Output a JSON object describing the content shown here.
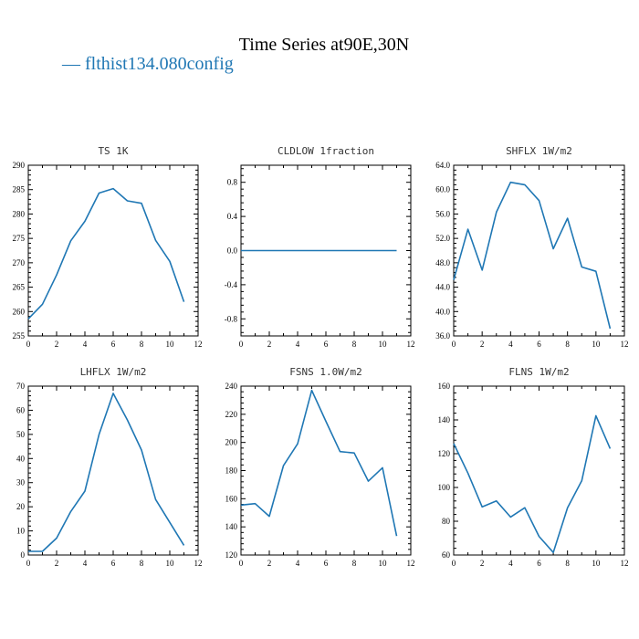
{
  "page": {
    "title": "Time Series at90E,30N",
    "legend_label": "— flthist134.080config",
    "line_color": "#1f77b4"
  },
  "chart_data": [
    {
      "type": "line",
      "title": "TS  1K",
      "x": [
        0,
        1,
        2,
        3,
        4,
        5,
        6,
        7,
        8,
        9,
        10,
        11
      ],
      "values": [
        258.5,
        261.5,
        267.5,
        274.5,
        278.5,
        284.3,
        285.2,
        282.7,
        282.2,
        274.6,
        270.3,
        262.0
      ],
      "xlim": [
        0,
        12
      ],
      "ylim": [
        255,
        290
      ],
      "xticks": [
        0,
        2,
        4,
        6,
        8,
        10,
        12
      ],
      "yticks": [
        255,
        260,
        265,
        270,
        275,
        280,
        285,
        290
      ],
      "ytick_labels": [
        "255",
        "260",
        "265",
        "270",
        "275",
        "280",
        "285",
        "290"
      ]
    },
    {
      "type": "line",
      "title": "CLDLOW  1fraction",
      "x": [
        0,
        1,
        2,
        3,
        4,
        5,
        6,
        7,
        8,
        9,
        10,
        11
      ],
      "values": [
        0,
        0,
        0,
        0,
        0,
        0,
        0,
        0,
        0,
        0,
        0,
        0
      ],
      "xlim": [
        0,
        12
      ],
      "ylim": [
        -1.0,
        1.0
      ],
      "xticks": [
        0,
        2,
        4,
        6,
        8,
        10,
        12
      ],
      "yticks": [
        -0.8,
        -0.4,
        0.0,
        0.4,
        0.8
      ],
      "ytick_labels": [
        "-0.8",
        "-0.4",
        "0.0",
        "0.4",
        "0.8"
      ]
    },
    {
      "type": "line",
      "title": "SHFLX  1W/m2",
      "x": [
        0,
        1,
        2,
        3,
        4,
        5,
        6,
        7,
        8,
        9,
        10,
        11
      ],
      "values": [
        45.2,
        53.5,
        46.8,
        56.3,
        61.2,
        60.8,
        58.2,
        50.3,
        55.3,
        47.3,
        46.6,
        37.2
      ],
      "xlim": [
        0,
        12
      ],
      "ylim": [
        36.0,
        64.0
      ],
      "xticks": [
        0,
        2,
        4,
        6,
        8,
        10,
        12
      ],
      "yticks": [
        36,
        40,
        44,
        48,
        52,
        56,
        60,
        64
      ],
      "ytick_labels": [
        "36.0",
        "40.0",
        "44.0",
        "48.0",
        "52.0",
        "56.0",
        "60.0",
        "64.0"
      ]
    },
    {
      "type": "line",
      "title": "LHFLX  1W/m2",
      "x": [
        0,
        1,
        2,
        3,
        4,
        5,
        6,
        7,
        8,
        9,
        10,
        11
      ],
      "values": [
        1.5,
        1.5,
        7.0,
        18.0,
        26.5,
        50.0,
        67.0,
        56.0,
        43.5,
        23.0,
        13.5,
        4.0
      ],
      "xlim": [
        0,
        12
      ],
      "ylim": [
        0,
        70
      ],
      "xticks": [
        0,
        2,
        4,
        6,
        8,
        10,
        12
      ],
      "yticks": [
        0,
        10,
        20,
        30,
        40,
        50,
        60,
        70
      ],
      "ytick_labels": [
        "0",
        "10",
        "20",
        "30",
        "40",
        "50",
        "60",
        "70"
      ]
    },
    {
      "type": "line",
      "title": "FSNS  1.0W/m2",
      "x": [
        0,
        1,
        2,
        3,
        4,
        5,
        6,
        7,
        8,
        9,
        10,
        11
      ],
      "values": [
        155.5,
        156.5,
        147.5,
        183.5,
        199.0,
        237.0,
        215.0,
        193.5,
        192.5,
        172.5,
        182.0,
        133.5
      ],
      "xlim": [
        0,
        12
      ],
      "ylim": [
        120,
        240
      ],
      "xticks": [
        0,
        2,
        4,
        6,
        8,
        10,
        12
      ],
      "yticks": [
        120,
        140,
        160,
        180,
        200,
        220,
        240
      ],
      "ytick_labels": [
        "120",
        "140",
        "160",
        "180",
        "200",
        "220",
        "240"
      ]
    },
    {
      "type": "line",
      "title": "FLNS  1W/m2",
      "x": [
        0,
        1,
        2,
        3,
        4,
        5,
        6,
        7,
        8,
        9,
        10,
        11
      ],
      "values": [
        126.0,
        108.5,
        88.5,
        92.0,
        82.5,
        88.0,
        71.0,
        61.5,
        88.0,
        104.0,
        142.5,
        123.0
      ],
      "xlim": [
        0,
        12
      ],
      "ylim": [
        60,
        160
      ],
      "xticks": [
        0,
        2,
        4,
        6,
        8,
        10,
        12
      ],
      "yticks": [
        60,
        80,
        100,
        120,
        140,
        160
      ],
      "ytick_labels": [
        "60",
        "80",
        "100",
        "120",
        "140",
        "160"
      ]
    }
  ]
}
